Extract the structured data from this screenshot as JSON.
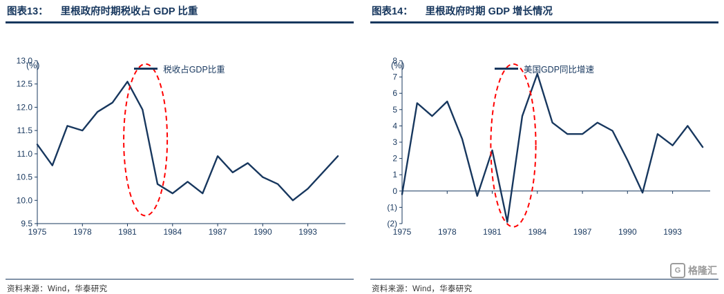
{
  "colors": {
    "accent_navy": "#17375E",
    "line_navy": "#17375E",
    "highlight_red": "#FF0000",
    "logo_gray": "#9B9B9B"
  },
  "panels": [
    {
      "label": "图表13：",
      "title": "里根政府时期税收占 GDP 比重",
      "unit": "(%)",
      "legend": "税收占GDP比重",
      "source": "资料来源：Wind，华泰研究"
    },
    {
      "label": "图表14：",
      "title": "里根政府时期 GDP 增长情况",
      "unit": "(%)",
      "legend": "美国GDP同比增速",
      "source": "资料来源：Wind，华泰研究"
    }
  ],
  "logo": {
    "badge": "G",
    "text": "格隆汇"
  },
  "chart_data": [
    {
      "type": "line",
      "title": "里根政府时期税收占 GDP 比重",
      "legend": "税收占GDP比重",
      "ylabel": "(%)",
      "x": [
        1975,
        1976,
        1977,
        1978,
        1979,
        1980,
        1981,
        1982,
        1983,
        1984,
        1985,
        1986,
        1987,
        1988,
        1989,
        1990,
        1991,
        1992,
        1993,
        1994,
        1995
      ],
      "values": [
        11.2,
        10.75,
        11.6,
        11.5,
        11.9,
        12.1,
        12.55,
        11.95,
        10.35,
        10.15,
        10.4,
        10.15,
        10.95,
        10.6,
        10.8,
        10.5,
        10.35,
        10.0,
        10.25,
        10.6,
        10.95
      ],
      "ylim": [
        9.5,
        13.0
      ],
      "ytick_step": 0.5,
      "ytick_format": "d1",
      "xlim": [
        1975,
        1995.5
      ],
      "xticks": [
        1975,
        1978,
        1981,
        1984,
        1987,
        1990,
        1993
      ],
      "axis_at_zero": false,
      "grid": false,
      "legend_position": "top-center",
      "line_color": "#17375E",
      "text_color": "#17375E",
      "ellipse_color": "#FF0000",
      "ellipse": {
        "cx": 1982.2,
        "cy": 11.3,
        "rx": 1.45,
        "ry": 1.63
      }
    },
    {
      "type": "line",
      "title": "里根政府时期 GDP 增长情况",
      "legend": "美国GDP同比增速",
      "ylabel": "(%)",
      "x": [
        1975,
        1976,
        1977,
        1978,
        1979,
        1980,
        1981,
        1982,
        1983,
        1984,
        1985,
        1986,
        1987,
        1988,
        1989,
        1990,
        1991,
        1992,
        1993,
        1994,
        1995
      ],
      "values": [
        -0.2,
        5.4,
        4.6,
        5.5,
        3.2,
        -0.3,
        2.5,
        -1.9,
        4.6,
        7.2,
        4.2,
        3.5,
        3.5,
        4.2,
        3.7,
        1.9,
        -0.1,
        3.5,
        2.8,
        4.0,
        2.7
      ],
      "ylim": [
        -2,
        8
      ],
      "ytick_step": 1,
      "ytick_format": "paren",
      "xlim": [
        1975,
        1995.5
      ],
      "xticks": [
        1975,
        1978,
        1981,
        1984,
        1987,
        1990,
        1993
      ],
      "axis_at_zero": true,
      "grid": false,
      "legend_position": "top-center",
      "line_color": "#17375E",
      "text_color": "#17375E",
      "ellipse_color": "#FF0000",
      "ellipse": {
        "cx": 1982.4,
        "cy": 2.8,
        "rx": 1.5,
        "ry": 5.0
      }
    }
  ]
}
